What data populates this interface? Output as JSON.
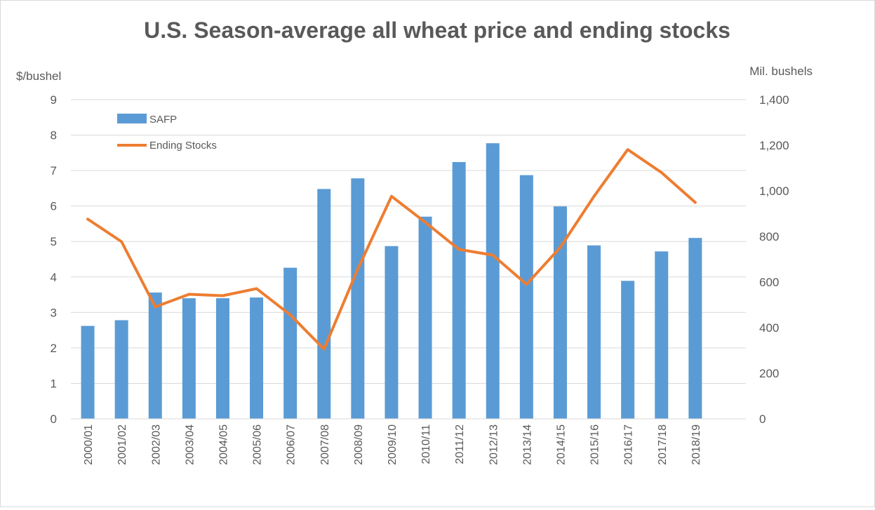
{
  "chart_data": {
    "type": "bar+line",
    "title": "U.S. Season-average all wheat price and ending stocks",
    "left_axis_label": "$/bushel",
    "right_axis_label": "Mil. bushels",
    "categories": [
      "2000/01",
      "2001/02",
      "2002/03",
      "2003/04",
      "2004/05",
      "2005/06",
      "2006/07",
      "2007/08",
      "2008/09",
      "2009/10",
      "2010/11",
      "2011/12",
      "2012/13",
      "2013/14",
      "2014/15",
      "2015/16",
      "2016/17",
      "2017/18",
      "2018/19"
    ],
    "left_ticks": [
      "0",
      "1",
      "2",
      "3",
      "4",
      "5",
      "6",
      "7",
      "8",
      "9"
    ],
    "right_ticks": [
      "0",
      "200",
      "400",
      "600",
      "800",
      "1,000",
      "1,200",
      "1,400"
    ],
    "ylim_left": [
      0,
      9
    ],
    "ylim_right": [
      0,
      1400
    ],
    "grid": true,
    "legend_position": "top-left",
    "series": [
      {
        "name": "SAFP",
        "kind": "bar",
        "axis": "left",
        "color": "#5b9bd5",
        "values": [
          2.62,
          2.78,
          3.56,
          3.4,
          3.4,
          3.42,
          4.26,
          6.48,
          6.78,
          4.87,
          5.7,
          7.24,
          7.77,
          6.87,
          5.99,
          4.89,
          3.89,
          4.72,
          5.1
        ]
      },
      {
        "name": "Ending Stocks",
        "kind": "line",
        "axis": "right",
        "color": "#ed7d31",
        "values": [
          876,
          777,
          491,
          546,
          540,
          571,
          456,
          306,
          657,
          976,
          862,
          743,
          718,
          590,
          752,
          976,
          1181,
          1080,
          949
        ]
      }
    ]
  }
}
